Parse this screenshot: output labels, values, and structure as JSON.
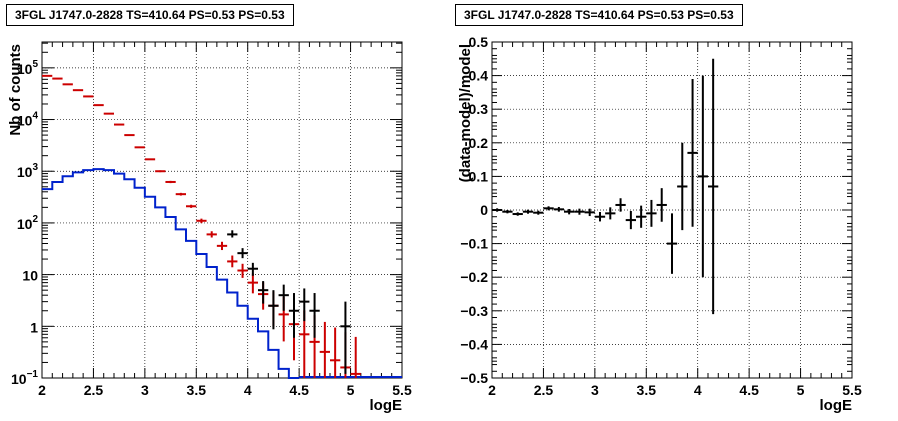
{
  "chart_data": [
    {
      "type": "histogram-log",
      "title": "3FGL J1747.0-2828 TS=410.64 PS=0.53 PS=0.53",
      "xlabel": "logE",
      "ylabel": "Nb of counts",
      "xlim": [
        2,
        5.5
      ],
      "ylim_log10": [
        -1,
        5.5
      ],
      "x_ticks": [
        "2",
        "2.5",
        "3",
        "3.5",
        "4",
        "4.5",
        "5",
        "5.5"
      ],
      "y_ticks": [
        {
          "base": "10",
          "exp": "−1",
          "v": -1
        },
        {
          "base": "1",
          "exp": "",
          "v": 0
        },
        {
          "base": "10",
          "exp": "",
          "v": 1
        },
        {
          "base": "10",
          "exp": "2",
          "v": 2
        },
        {
          "base": "10",
          "exp": "3",
          "v": 3
        },
        {
          "base": "10",
          "exp": "4",
          "v": 4
        },
        {
          "base": "10",
          "exp": "5",
          "v": 5
        }
      ],
      "grid": true,
      "model_total": {
        "color": "#cc0000",
        "x": [
          2.05,
          2.15,
          2.25,
          2.35,
          2.45,
          2.55,
          2.65,
          2.75,
          2.85,
          2.95,
          3.05,
          3.15,
          3.25,
          3.35,
          3.45,
          3.55,
          3.65,
          3.75,
          3.85,
          3.95,
          4.05,
          4.15,
          4.25,
          4.35,
          4.45,
          4.55,
          4.65,
          4.75,
          4.85,
          4.95,
          5.05
        ],
        "y": [
          70000,
          62000,
          48000,
          37000,
          28000,
          19000,
          13000,
          8000,
          5000,
          2900,
          1700,
          1000,
          620,
          360,
          210,
          110,
          60,
          36,
          18,
          12,
          7,
          4.2,
          2.5,
          1.7,
          1.1,
          0.7,
          0.5,
          0.32,
          0.22,
          0.16,
          0.12
        ],
        "err_hi": [
          1.02,
          1.02,
          1.02,
          1.02,
          1.02,
          1.02,
          1.02,
          1.02,
          1.02,
          1.03,
          1.03,
          1.04,
          1.05,
          1.06,
          1.07,
          1.1,
          1.15,
          1.2,
          1.3,
          1.35,
          1.5,
          1.7,
          1.9,
          2.2,
          2.5,
          2.9,
          3.3,
          3.8,
          4.3,
          4.8,
          5.2
        ],
        "err_lo": [
          0.98,
          0.98,
          0.98,
          0.98,
          0.98,
          0.98,
          0.98,
          0.98,
          0.98,
          0.97,
          0.97,
          0.96,
          0.95,
          0.94,
          0.93,
          0.9,
          0.87,
          0.83,
          0.77,
          0.72,
          0.62,
          0.5,
          0.4,
          0.3,
          0.2,
          0.1,
          0.05,
          0.01,
          0.01,
          0.01,
          0.01
        ]
      },
      "source_model": {
        "color": "#0022cc",
        "edges": [
          2.0,
          2.1,
          2.2,
          2.3,
          2.4,
          2.5,
          2.6,
          2.7,
          2.8,
          2.9,
          3.0,
          3.1,
          3.2,
          3.3,
          3.4,
          3.5,
          3.6,
          3.7,
          3.8,
          3.9,
          4.0,
          4.1,
          4.2,
          4.3,
          4.4,
          4.5
        ],
        "y": [
          450,
          620,
          800,
          950,
          1050,
          1100,
          1050,
          900,
          700,
          480,
          320,
          200,
          130,
          75,
          45,
          25,
          14,
          8,
          4.5,
          2.5,
          1.4,
          0.8,
          0.35,
          0.15,
          0.1
        ]
      },
      "data": {
        "color": "#000000",
        "x": [
          3.85,
          3.95,
          4.05,
          4.15,
          4.25,
          4.35,
          4.45,
          4.55,
          4.65,
          4.95
        ],
        "y": [
          60,
          26,
          13,
          5,
          2.5,
          4,
          2,
          3,
          2,
          1
        ],
        "err_hi": [
          1.2,
          1.25,
          1.3,
          1.5,
          2.0,
          1.6,
          2.2,
          1.8,
          2.2,
          3
        ],
        "err_lo": [
          0.87,
          0.8,
          0.73,
          0.55,
          0.35,
          0.5,
          0.3,
          0.42,
          0.3,
          0.12
        ]
      }
    },
    {
      "type": "errorbar",
      "title": "3FGL J1747.0-2828 TS=410.64 PS=0.53 PS=0.53",
      "xlabel": "logE",
      "ylabel": "(data-model)/model",
      "xlim": [
        2,
        5.5
      ],
      "ylim": [
        -0.5,
        0.5
      ],
      "x_ticks": [
        "2",
        "2.5",
        "3",
        "3.5",
        "4",
        "4.5",
        "5",
        "5.5"
      ],
      "y_ticks": [
        "−0.5",
        "−0.4",
        "−0.3",
        "−0.2",
        "−0.1",
        "0",
        "0.1",
        "0.2",
        "0.3",
        "0.4",
        "0.5"
      ],
      "grid": true,
      "points": {
        "color": "#000000",
        "x": [
          2.05,
          2.15,
          2.25,
          2.35,
          2.45,
          2.55,
          2.65,
          2.75,
          2.85,
          2.95,
          3.05,
          3.15,
          3.25,
          3.35,
          3.45,
          3.55,
          3.65,
          3.75,
          3.85,
          3.95,
          4.05,
          4.15
        ],
        "y": [
          0.0,
          -0.005,
          -0.012,
          -0.005,
          -0.008,
          0.005,
          0.002,
          -0.005,
          -0.005,
          -0.007,
          -0.02,
          -0.01,
          0.015,
          -0.03,
          -0.02,
          -0.01,
          0.015,
          -0.1,
          0.07,
          0.17,
          0.1,
          0.07
        ],
        "err": [
          0.005,
          0.005,
          0.005,
          0.006,
          0.006,
          0.006,
          0.007,
          0.008,
          0.009,
          0.011,
          0.014,
          0.018,
          0.02,
          0.027,
          0.033,
          0.04,
          0.05,
          0.09,
          0.13,
          0.22,
          0.3,
          0.38
        ]
      }
    }
  ]
}
